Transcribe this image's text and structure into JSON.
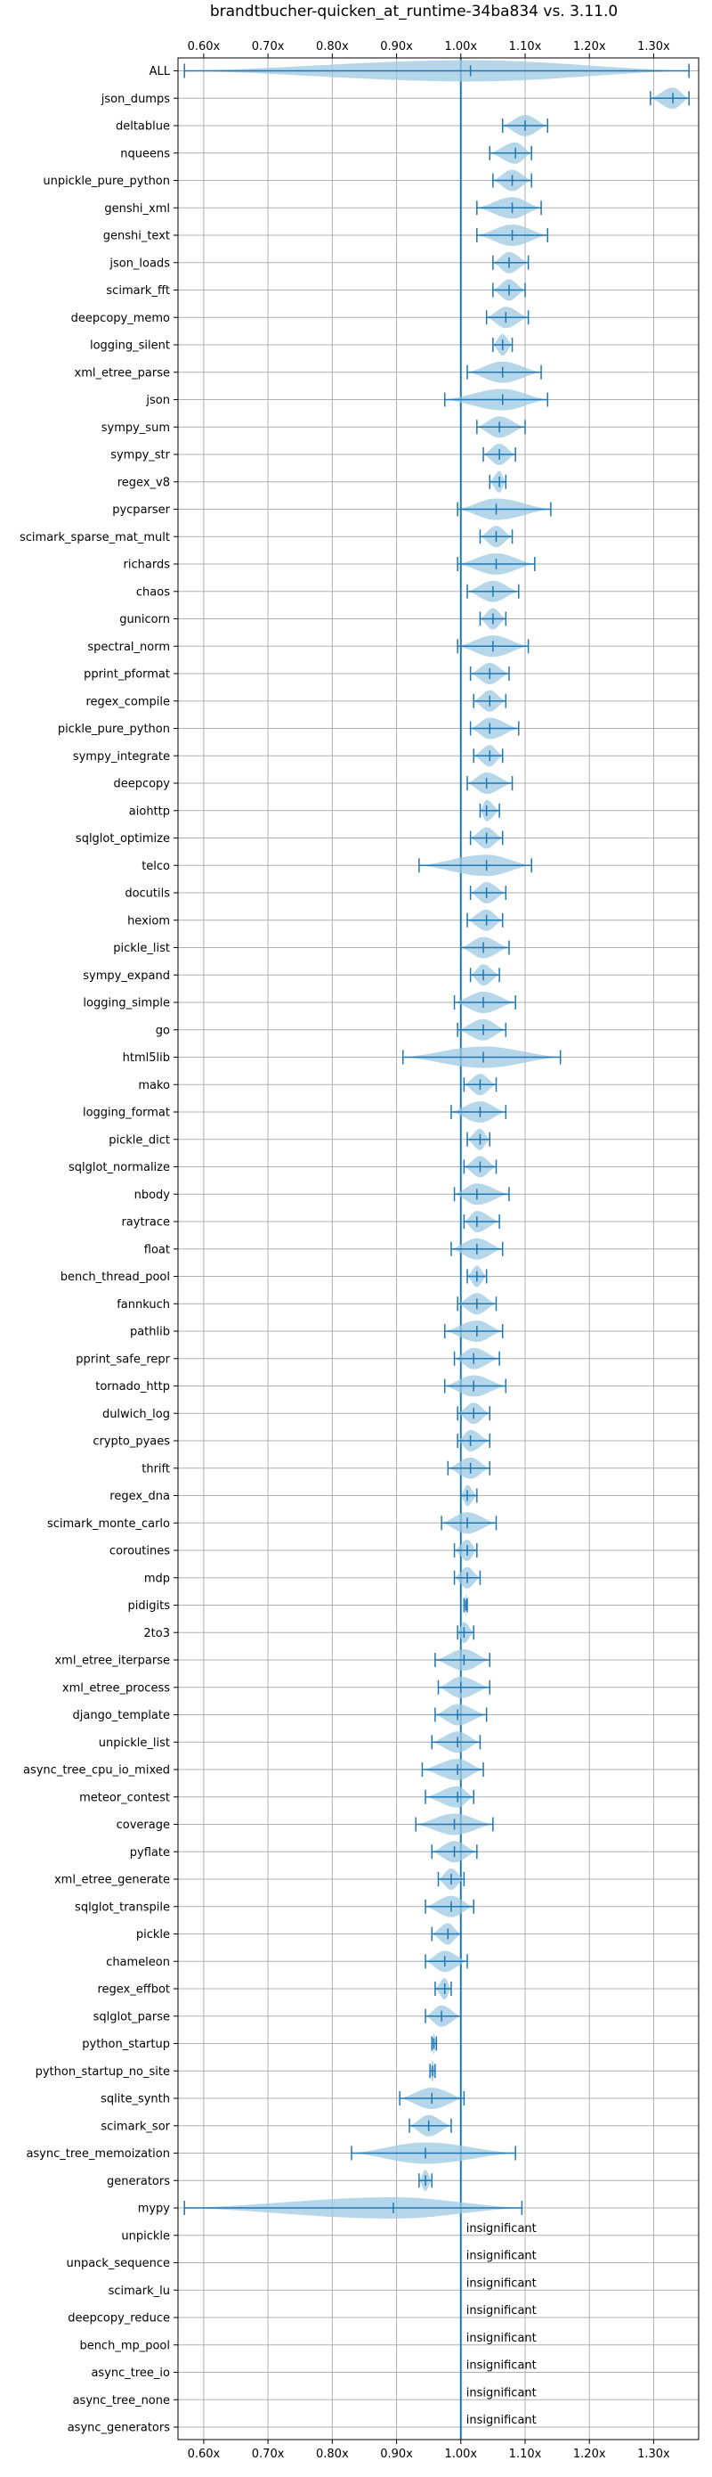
{
  "chart_data": {
    "type": "violin",
    "title": "brandtbucher-quicken_at_runtime-34ba834 vs. 3.11.0",
    "xlim": [
      0.56,
      1.37
    ],
    "x_ticks": [
      0.6,
      0.7,
      0.8,
      0.9,
      1.0,
      1.1,
      1.2,
      1.3
    ],
    "x_tick_labels": [
      "0.60x",
      "0.70x",
      "0.80x",
      "0.90x",
      "1.00x",
      "1.10x",
      "1.20x",
      "1.30x"
    ],
    "reference_line": 1.0,
    "grid": true,
    "insignificant_label": "insignificant",
    "colors": {
      "line": "#1f77b4",
      "fill": "#9ecae1",
      "grid": "#b0b0b0"
    },
    "benchmarks": [
      {
        "name": "ALL",
        "min": 0.57,
        "max": 1.355,
        "median": 1.015
      },
      {
        "name": "json_dumps",
        "min": 1.295,
        "max": 1.355,
        "median": 1.33
      },
      {
        "name": "deltablue",
        "min": 1.065,
        "max": 1.135,
        "median": 1.1
      },
      {
        "name": "nqueens",
        "min": 1.045,
        "max": 1.11,
        "median": 1.085
      },
      {
        "name": "unpickle_pure_python",
        "min": 1.05,
        "max": 1.11,
        "median": 1.08
      },
      {
        "name": "genshi_xml",
        "min": 1.025,
        "max": 1.125,
        "median": 1.08
      },
      {
        "name": "genshi_text",
        "min": 1.025,
        "max": 1.135,
        "median": 1.08
      },
      {
        "name": "json_loads",
        "min": 1.05,
        "max": 1.105,
        "median": 1.075
      },
      {
        "name": "scimark_fft",
        "min": 1.05,
        "max": 1.1,
        "median": 1.075
      },
      {
        "name": "deepcopy_memo",
        "min": 1.04,
        "max": 1.105,
        "median": 1.07
      },
      {
        "name": "logging_silent",
        "min": 1.05,
        "max": 1.08,
        "median": 1.065
      },
      {
        "name": "xml_etree_parse",
        "min": 1.01,
        "max": 1.125,
        "median": 1.065
      },
      {
        "name": "json",
        "min": 0.975,
        "max": 1.135,
        "median": 1.065
      },
      {
        "name": "sympy_sum",
        "min": 1.025,
        "max": 1.1,
        "median": 1.06
      },
      {
        "name": "sympy_str",
        "min": 1.035,
        "max": 1.085,
        "median": 1.06
      },
      {
        "name": "regex_v8",
        "min": 1.045,
        "max": 1.07,
        "median": 1.06
      },
      {
        "name": "pycparser",
        "min": 0.995,
        "max": 1.14,
        "median": 1.055
      },
      {
        "name": "scimark_sparse_mat_mult",
        "min": 1.03,
        "max": 1.08,
        "median": 1.055
      },
      {
        "name": "richards",
        "min": 0.995,
        "max": 1.115,
        "median": 1.055
      },
      {
        "name": "chaos",
        "min": 1.01,
        "max": 1.09,
        "median": 1.05
      },
      {
        "name": "gunicorn",
        "min": 1.03,
        "max": 1.07,
        "median": 1.05
      },
      {
        "name": "spectral_norm",
        "min": 0.995,
        "max": 1.105,
        "median": 1.05
      },
      {
        "name": "pprint_pformat",
        "min": 1.015,
        "max": 1.075,
        "median": 1.045
      },
      {
        "name": "regex_compile",
        "min": 1.02,
        "max": 1.07,
        "median": 1.045
      },
      {
        "name": "pickle_pure_python",
        "min": 1.015,
        "max": 1.09,
        "median": 1.045
      },
      {
        "name": "sympy_integrate",
        "min": 1.02,
        "max": 1.065,
        "median": 1.045
      },
      {
        "name": "deepcopy",
        "min": 1.01,
        "max": 1.08,
        "median": 1.04
      },
      {
        "name": "aiohttp",
        "min": 1.03,
        "max": 1.06,
        "median": 1.04
      },
      {
        "name": "sqlglot_optimize",
        "min": 1.015,
        "max": 1.065,
        "median": 1.04
      },
      {
        "name": "telco",
        "min": 0.935,
        "max": 1.11,
        "median": 1.04
      },
      {
        "name": "docutils",
        "min": 1.015,
        "max": 1.07,
        "median": 1.04
      },
      {
        "name": "hexiom",
        "min": 1.01,
        "max": 1.065,
        "median": 1.04
      },
      {
        "name": "pickle_list",
        "min": 1.0,
        "max": 1.075,
        "median": 1.035
      },
      {
        "name": "sympy_expand",
        "min": 1.015,
        "max": 1.06,
        "median": 1.035
      },
      {
        "name": "logging_simple",
        "min": 0.99,
        "max": 1.085,
        "median": 1.035
      },
      {
        "name": "go",
        "min": 0.995,
        "max": 1.07,
        "median": 1.035
      },
      {
        "name": "html5lib",
        "min": 0.91,
        "max": 1.155,
        "median": 1.035
      },
      {
        "name": "mako",
        "min": 1.005,
        "max": 1.055,
        "median": 1.03
      },
      {
        "name": "logging_format",
        "min": 0.985,
        "max": 1.07,
        "median": 1.03
      },
      {
        "name": "pickle_dict",
        "min": 1.01,
        "max": 1.045,
        "median": 1.03
      },
      {
        "name": "sqlglot_normalize",
        "min": 1.005,
        "max": 1.055,
        "median": 1.03
      },
      {
        "name": "nbody",
        "min": 0.99,
        "max": 1.075,
        "median": 1.025
      },
      {
        "name": "raytrace",
        "min": 1.005,
        "max": 1.06,
        "median": 1.025
      },
      {
        "name": "float",
        "min": 0.985,
        "max": 1.065,
        "median": 1.025
      },
      {
        "name": "bench_thread_pool",
        "min": 1.01,
        "max": 1.04,
        "median": 1.025
      },
      {
        "name": "fannkuch",
        "min": 0.995,
        "max": 1.055,
        "median": 1.025
      },
      {
        "name": "pathlib",
        "min": 0.975,
        "max": 1.065,
        "median": 1.025
      },
      {
        "name": "pprint_safe_repr",
        "min": 0.99,
        "max": 1.06,
        "median": 1.02
      },
      {
        "name": "tornado_http",
        "min": 0.975,
        "max": 1.07,
        "median": 1.02
      },
      {
        "name": "dulwich_log",
        "min": 0.995,
        "max": 1.045,
        "median": 1.02
      },
      {
        "name": "crypto_pyaes",
        "min": 0.995,
        "max": 1.045,
        "median": 1.015
      },
      {
        "name": "thrift",
        "min": 0.98,
        "max": 1.045,
        "median": 1.015
      },
      {
        "name": "regex_dna",
        "min": 1.0,
        "max": 1.025,
        "median": 1.01
      },
      {
        "name": "scimark_monte_carlo",
        "min": 0.97,
        "max": 1.055,
        "median": 1.01
      },
      {
        "name": "coroutines",
        "min": 0.99,
        "max": 1.025,
        "median": 1.01
      },
      {
        "name": "mdp",
        "min": 0.99,
        "max": 1.03,
        "median": 1.01
      },
      {
        "name": "pidigits",
        "min": 1.005,
        "max": 1.01,
        "median": 1.008
      },
      {
        "name": "2to3",
        "min": 0.995,
        "max": 1.02,
        "median": 1.005
      },
      {
        "name": "xml_etree_iterparse",
        "min": 0.96,
        "max": 1.045,
        "median": 1.005
      },
      {
        "name": "xml_etree_process",
        "min": 0.965,
        "max": 1.045,
        "median": 1.0
      },
      {
        "name": "django_template",
        "min": 0.96,
        "max": 1.04,
        "median": 0.995
      },
      {
        "name": "unpickle_list",
        "min": 0.955,
        "max": 1.03,
        "median": 0.995
      },
      {
        "name": "async_tree_cpu_io_mixed",
        "min": 0.94,
        "max": 1.035,
        "median": 0.995
      },
      {
        "name": "meteor_contest",
        "min": 0.945,
        "max": 1.02,
        "median": 0.995
      },
      {
        "name": "coverage",
        "min": 0.93,
        "max": 1.05,
        "median": 0.99
      },
      {
        "name": "pyflate",
        "min": 0.955,
        "max": 1.025,
        "median": 0.99
      },
      {
        "name": "xml_etree_generate",
        "min": 0.965,
        "max": 1.005,
        "median": 0.985
      },
      {
        "name": "sqlglot_transpile",
        "min": 0.945,
        "max": 1.02,
        "median": 0.985
      },
      {
        "name": "pickle",
        "min": 0.955,
        "max": 1.0,
        "median": 0.98
      },
      {
        "name": "chameleon",
        "min": 0.945,
        "max": 1.01,
        "median": 0.975
      },
      {
        "name": "regex_effbot",
        "min": 0.96,
        "max": 0.985,
        "median": 0.975
      },
      {
        "name": "sqlglot_parse",
        "min": 0.945,
        "max": 1.0,
        "median": 0.97
      },
      {
        "name": "python_startup",
        "min": 0.955,
        "max": 0.962,
        "median": 0.958
      },
      {
        "name": "python_startup_no_site",
        "min": 0.952,
        "max": 0.96,
        "median": 0.956
      },
      {
        "name": "sqlite_synth",
        "min": 0.905,
        "max": 1.005,
        "median": 0.955
      },
      {
        "name": "scimark_sor",
        "min": 0.92,
        "max": 0.985,
        "median": 0.95
      },
      {
        "name": "async_tree_memoization",
        "min": 0.83,
        "max": 1.085,
        "median": 0.945
      },
      {
        "name": "generators",
        "min": 0.935,
        "max": 0.955,
        "median": 0.945
      },
      {
        "name": "mypy",
        "min": 0.57,
        "max": 1.095,
        "median": 0.895
      },
      {
        "name": "unpickle",
        "insignificant": true
      },
      {
        "name": "unpack_sequence",
        "insignificant": true
      },
      {
        "name": "scimark_lu",
        "insignificant": true
      },
      {
        "name": "deepcopy_reduce",
        "insignificant": true
      },
      {
        "name": "bench_mp_pool",
        "insignificant": true
      },
      {
        "name": "async_tree_io",
        "insignificant": true
      },
      {
        "name": "async_tree_none",
        "insignificant": true
      },
      {
        "name": "async_generators",
        "insignificant": true
      }
    ]
  }
}
